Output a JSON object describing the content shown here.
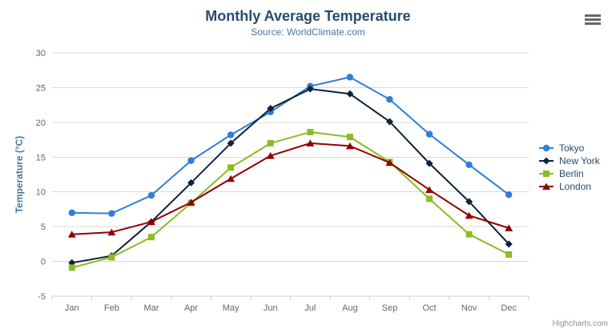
{
  "chart": {
    "title": "Monthly Average Temperature",
    "subtitle": "Source: WorldClimate.com",
    "credits": "Highcharts.com",
    "export_menu_icon": "hamburger-icon"
  },
  "chart_data": {
    "type": "line",
    "title": "Monthly Average Temperature",
    "subtitle": "Source: WorldClimate.com",
    "categories": [
      "Jan",
      "Feb",
      "Mar",
      "Apr",
      "May",
      "Jun",
      "Jul",
      "Aug",
      "Sep",
      "Oct",
      "Nov",
      "Dec"
    ],
    "series": [
      {
        "name": "Tokyo",
        "color": "#2f7ed8",
        "marker": "circle",
        "values": [
          7.0,
          6.9,
          9.5,
          14.5,
          18.2,
          21.5,
          25.2,
          26.5,
          23.3,
          18.3,
          13.9,
          9.6
        ]
      },
      {
        "name": "New York",
        "color": "#0d233a",
        "marker": "diamond",
        "values": [
          -0.2,
          0.8,
          5.7,
          11.3,
          17.0,
          22.0,
          24.8,
          24.1,
          20.1,
          14.1,
          8.6,
          2.5
        ]
      },
      {
        "name": "Berlin",
        "color": "#8bbc21",
        "marker": "square",
        "values": [
          -0.9,
          0.6,
          3.5,
          8.4,
          13.5,
          17.0,
          18.6,
          17.9,
          14.3,
          9.0,
          3.9,
          1.0
        ]
      },
      {
        "name": "London",
        "color": "#910000",
        "marker": "triangle",
        "values": [
          3.9,
          4.2,
          5.7,
          8.5,
          11.9,
          15.2,
          17.0,
          16.6,
          14.2,
          10.3,
          6.6,
          4.8
        ]
      }
    ],
    "xlabel": "",
    "ylabel": "Temperature (°C)",
    "ylim": [
      -5,
      30
    ],
    "ytick_step": 5,
    "yticks": [
      -5,
      0,
      5,
      10,
      15,
      20,
      25,
      30
    ],
    "grid": true,
    "legend_position": "right"
  },
  "colors": {
    "title": "#274b6d",
    "subtitle": "#4d759e",
    "axis_title": "#4d759e",
    "axis_label": "#666666",
    "grid_line": "#d8d8d8",
    "axis_line": "#c0d0e0",
    "legend_text": "#274b6d",
    "credits": "#909090",
    "background": "#ffffff"
  }
}
